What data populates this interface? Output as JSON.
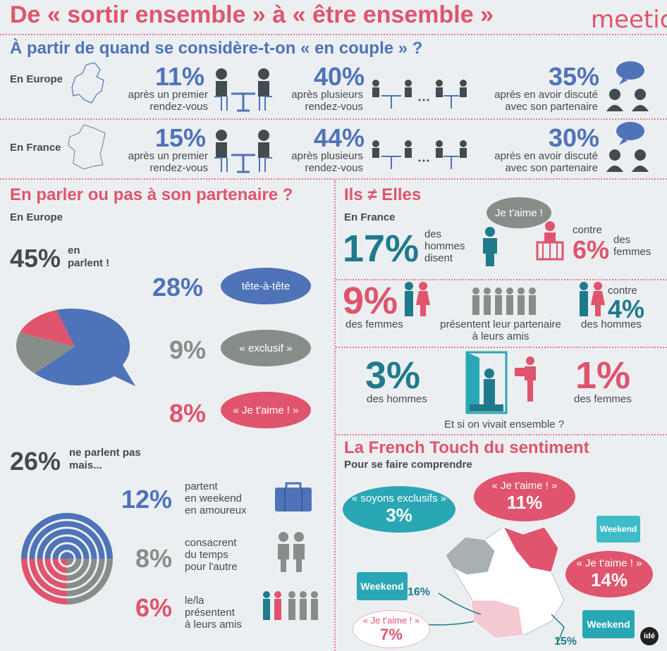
{
  "header": {
    "title": "De « sortir ensemble » à « être ensemble »",
    "brand": "meetic",
    "question": "À partir de quand se considère-t-on « en couple » ?"
  },
  "couple": {
    "europe": {
      "label": "En Europe",
      "first_pct": "11%",
      "first_cap": "après un premier rendez-vous",
      "several_pct": "40%",
      "several_cap": "après plusieurs rendez-vous",
      "talk_pct": "35%",
      "talk_cap": "après en avoir discuté avec son partenaire"
    },
    "france": {
      "label": "En France",
      "first_pct": "15%",
      "first_cap": "après un premier rendez-vous",
      "several_pct": "44%",
      "several_cap": "après plusieurs rendez-vous",
      "talk_pct": "30%",
      "talk_cap": "après en avoir discuté avec son partenaire"
    },
    "first_line1": "après un premier",
    "first_line2": "rendez-vous",
    "several_line1": "après plusieurs",
    "several_line2": "rendez-vous",
    "talk_line1": "après en avoir discuté",
    "talk_line2": "avec son partenaire"
  },
  "talk": {
    "title": "En parler ou pas à son partenaire ?",
    "region": "En Europe",
    "yes_pct": "45%",
    "yes_line1": "en",
    "yes_line2": "parlent !",
    "items": [
      {
        "pct": "28%",
        "bubble": "tête-à-tête",
        "color": "#4e73b8"
      },
      {
        "pct": "9%",
        "bubble": "« exclusif »",
        "color": "#868e89"
      },
      {
        "pct": "8%",
        "bubble": "« Je t'aime ! »",
        "color": "#e0546d"
      }
    ],
    "no_pct": "26%",
    "no_line1": "ne parlent pas",
    "no_line2": "mais...",
    "no_items": [
      {
        "pct": "12%",
        "l1": "partent",
        "l2": "en weekend",
        "l3": "en amoureux",
        "color": "#4e73b8"
      },
      {
        "pct": "8%",
        "l1": "consacrent",
        "l2": "du temps",
        "l3": "pour l'autre",
        "color": "#868e89"
      },
      {
        "pct": "6%",
        "l1": "le/la",
        "l2": "présentent",
        "l3": "à leurs amis",
        "color": "#e0546d"
      }
    ]
  },
  "ils": {
    "title": "Ils ≠ Elles",
    "region": "En France",
    "bubble": "Je t'aime !",
    "men_pct": "17%",
    "men_l1": "des",
    "men_l2": "hommes",
    "men_l3": "disent",
    "contre": "contre",
    "women_pct": "6%",
    "women_l1": "des",
    "women_l2": "femmes",
    "f_pct": "9%",
    "f_cap": "des femmes",
    "present_l1": "présentent leur partenaire",
    "present_l2": "à leurs amis",
    "contre2": "contre",
    "h_pct": "4%",
    "h_cap": "des hommes",
    "live_men_pct": "3%",
    "live_men_cap": "des hommes",
    "live_women_pct": "1%",
    "live_women_cap": "des femmes",
    "live_q": "Et si on vivait ensemble ?"
  },
  "french": {
    "title": "La French Touch du sentiment",
    "subtitle": "Pour se faire comprendre",
    "b1_text": "« soyons exclusifs »",
    "b1_pct": "3%",
    "b2_text": "« Je t'aime ! »",
    "b2_pct": "11%",
    "b3_text": "« Je t'aime ! »",
    "b3_pct": "14%",
    "b4_text": "« Je t'aime ! »",
    "b4_pct": "7%",
    "weekend": "Weekend",
    "pct_16": "16%",
    "pct_15": "15%",
    "credit": "idé"
  },
  "colors": {
    "pink": "#e0546d",
    "blue": "#4e73b8",
    "gray": "#868e89",
    "teal": "#1f7a8c",
    "cyan": "#2aa7b4"
  }
}
